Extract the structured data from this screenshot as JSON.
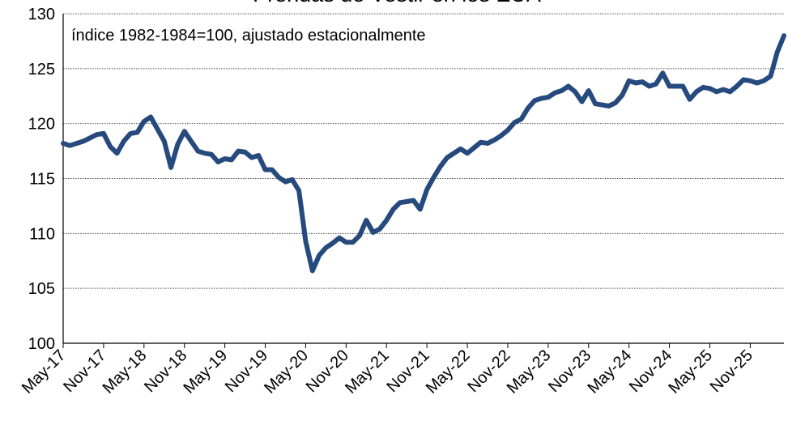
{
  "chart_data": {
    "type": "line",
    "title": "Prendas de Vestir en los EUA",
    "subtitle": "índice 1982-1984=100, ajustado estacionalmente",
    "categories": [
      "May-17",
      null,
      null,
      null,
      null,
      null,
      "Nov-17",
      null,
      null,
      null,
      null,
      null,
      "May-18",
      null,
      null,
      null,
      null,
      null,
      "Nov-18",
      null,
      null,
      null,
      null,
      null,
      "May-19",
      null,
      null,
      null,
      null,
      null,
      "Nov-19",
      null,
      null,
      null,
      null,
      null,
      "May-20",
      null,
      null,
      null,
      null,
      null,
      "Nov-20",
      null,
      null,
      null,
      null,
      null,
      "May-21",
      null,
      null,
      null,
      null,
      null,
      "Nov-21",
      null,
      null,
      null,
      null,
      null,
      "May-22",
      null,
      null,
      null,
      null,
      null,
      "Nov-22",
      null,
      null,
      null,
      null,
      null,
      "May-23",
      null,
      null,
      null,
      null,
      null,
      "Nov-23",
      null,
      null,
      null,
      null,
      null,
      "May-24",
      null,
      null,
      null,
      null,
      null,
      "Nov-24",
      null,
      null,
      null,
      null,
      null,
      "May-25",
      null,
      null,
      null,
      null,
      null,
      "Nov-25",
      null,
      null,
      null,
      null,
      null
    ],
    "series": [
      {
        "name": "Prendas de Vestir",
        "color": "#264a7d",
        "values": [
          118.2,
          118.0,
          118.2,
          118.4,
          118.7,
          119.0,
          119.1,
          117.9,
          117.3,
          118.4,
          119.1,
          119.2,
          120.2,
          120.6,
          119.5,
          118.4,
          116.0,
          118.1,
          119.3,
          118.4,
          117.5,
          117.3,
          117.2,
          116.5,
          116.8,
          116.7,
          117.5,
          117.4,
          116.9,
          117.1,
          115.8,
          115.8,
          115.1,
          114.7,
          114.9,
          113.9,
          109.3,
          106.6,
          108.0,
          108.7,
          109.1,
          109.6,
          109.2,
          109.2,
          109.8,
          111.2,
          110.1,
          110.4,
          111.2,
          112.2,
          112.8,
          112.9,
          113.0,
          112.2,
          114.0,
          115.1,
          116.1,
          116.9,
          117.3,
          117.7,
          117.3,
          117.8,
          118.3,
          118.2,
          118.5,
          118.9,
          119.4,
          120.1,
          120.4,
          121.4,
          122.1,
          122.3,
          122.4,
          122.8,
          123.0,
          123.4,
          122.9,
          122.0,
          123.0,
          121.8,
          121.7,
          121.6,
          121.9,
          122.6,
          123.9,
          123.7,
          123.8,
          123.4,
          123.6,
          124.6,
          123.4,
          123.4,
          123.4,
          122.2,
          122.9,
          123.3,
          123.2,
          122.9,
          123.1,
          122.9,
          123.4,
          124.0,
          123.9,
          123.7,
          123.9,
          124.3,
          126.5,
          128.0
        ]
      }
    ],
    "ylim": [
      100,
      130
    ],
    "yticks": [
      100,
      105,
      110,
      115,
      120,
      125,
      130
    ],
    "grid": true
  }
}
